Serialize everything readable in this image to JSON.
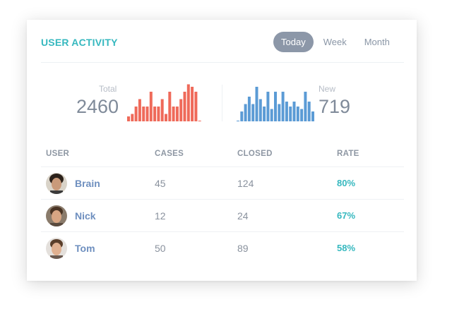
{
  "widget": {
    "title": "USER ACTIVITY",
    "tabs": [
      {
        "label": "Today",
        "active": true
      },
      {
        "label": "Week",
        "active": false
      },
      {
        "label": "Month",
        "active": false
      }
    ]
  },
  "stats": {
    "total": {
      "label": "Total",
      "value": "2460",
      "color": "#ef6a5a",
      "bars": [
        2,
        3,
        6,
        9,
        6,
        6,
        12,
        6,
        6,
        9,
        3,
        12,
        6,
        6,
        9,
        12,
        15,
        14,
        12,
        0
      ]
    },
    "new": {
      "label": "New",
      "value": "719",
      "color": "#5b9bd5",
      "bars": [
        0,
        4,
        7,
        10,
        7,
        14,
        9,
        6,
        12,
        5,
        12,
        7,
        12,
        8,
        6,
        8,
        6,
        5,
        12,
        8,
        4
      ]
    }
  },
  "table": {
    "headers": {
      "user": "USER",
      "cases": "CASES",
      "closed": "CLOSED",
      "rate": "RATE"
    },
    "rows": [
      {
        "name": "Brain",
        "cases": "45",
        "closed": "124",
        "rate": "80%"
      },
      {
        "name": "Nick",
        "cases": "12",
        "closed": "24",
        "rate": "67%"
      },
      {
        "name": "Tom",
        "cases": "50",
        "closed": "89",
        "rate": "58%"
      }
    ]
  }
}
